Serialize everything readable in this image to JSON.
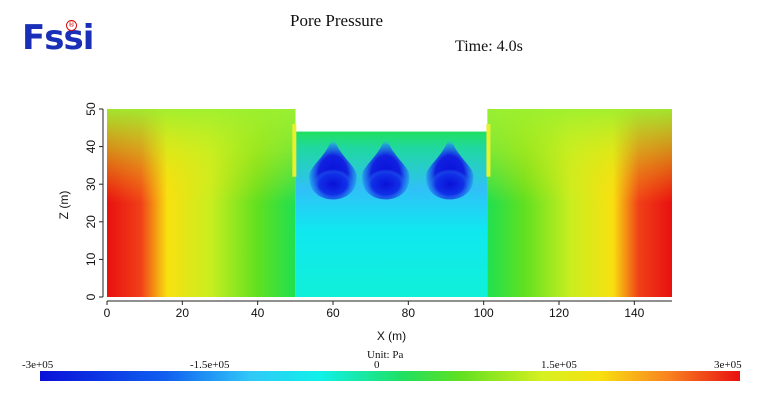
{
  "logo": {
    "text_main": "Fssi",
    "registered": "®"
  },
  "chart_data": {
    "type": "heatmap",
    "title": "Pore Pressure",
    "subtitle": "Time: 4.0s",
    "xlabel": "X (m)",
    "ylabel": "Z (m)",
    "xlim": [
      0,
      150
    ],
    "ylim": [
      0,
      50
    ],
    "xticks": [
      "0",
      "20",
      "40",
      "60",
      "80",
      "100",
      "120",
      "140"
    ],
    "yticks": [
      "0",
      "10",
      "20",
      "30",
      "40",
      "50"
    ],
    "domain_profile": {
      "left_block": {
        "x": [
          0,
          50
        ],
        "z_top": 50
      },
      "trench": {
        "x": [
          50,
          101
        ],
        "z_top": 44
      },
      "right_block": {
        "x": [
          101,
          150
        ],
        "z_top": 50
      }
    },
    "low_pressure_lobes_x": [
      60,
      74,
      91
    ],
    "colorbar": {
      "unit_label": "Unit:  Pa",
      "tick_labels": [
        "-3e+05",
        "-1.5e+05",
        "0",
        "1.5e+05",
        "3e+05"
      ],
      "range": [
        -300000,
        300000
      ]
    },
    "colors": {
      "min": "#0a10d8",
      "low": "#10f0e8",
      "zero": "#20e060",
      "high": "#f8e010",
      "max": "#e81010"
    }
  }
}
